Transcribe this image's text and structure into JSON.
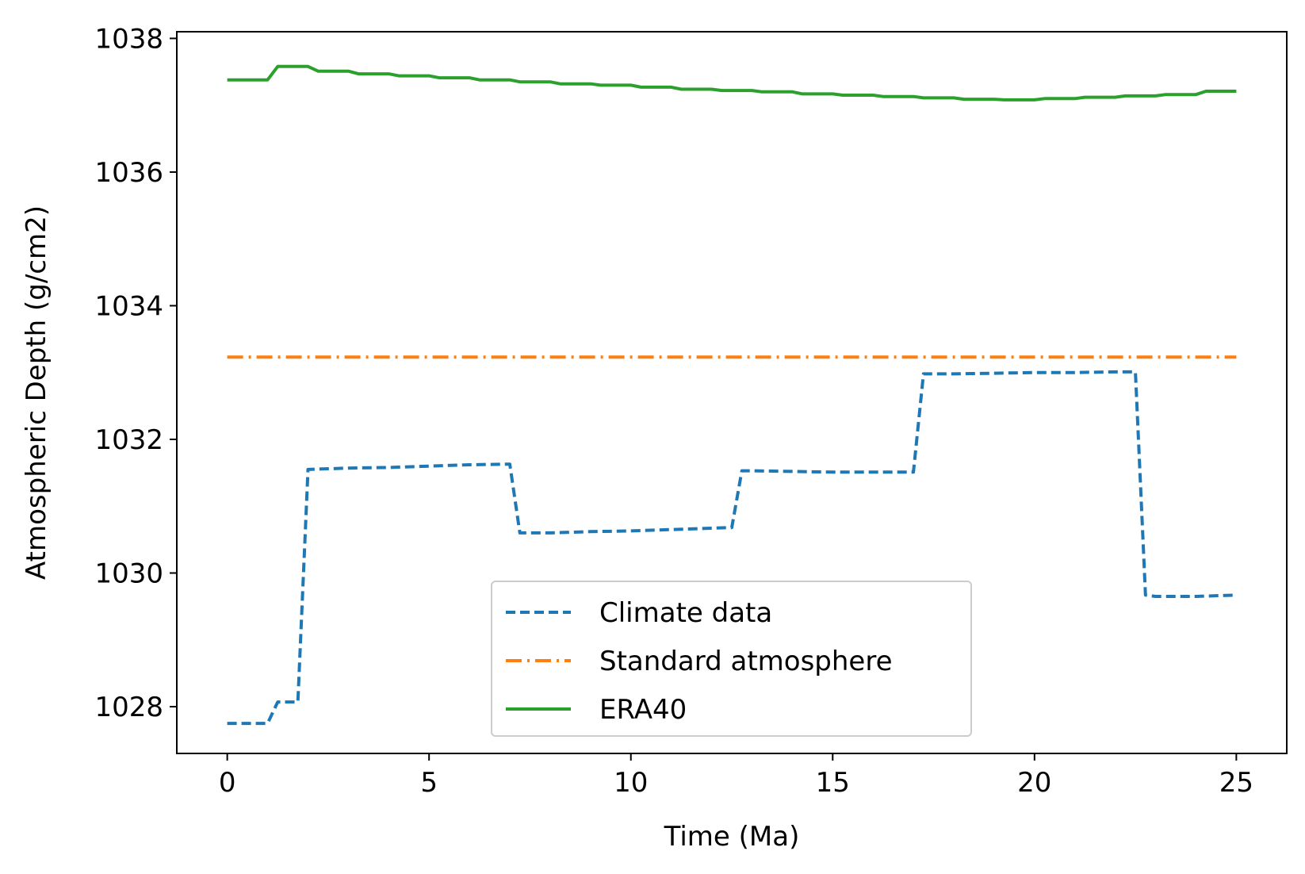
{
  "chart_data": {
    "type": "line",
    "title": "",
    "xlabel": "Time (Ma)",
    "ylabel": "Atmospheric Depth (g/cm2)",
    "xlim": [
      -1.25,
      26.25
    ],
    "ylim": [
      1027.3,
      1038.1
    ],
    "xticks": [
      0,
      5,
      10,
      15,
      20,
      25
    ],
    "yticks": [
      1028,
      1030,
      1032,
      1034,
      1036,
      1038
    ],
    "grid": false,
    "legend_position": "lower center",
    "series": [
      {
        "name": "Climate data",
        "color": "#1f77b4",
        "linestyle": "dashed",
        "x": [
          0,
          1,
          1.25,
          1.75,
          2,
          3,
          4,
          5,
          6,
          7,
          7.25,
          8,
          9,
          10,
          11,
          12,
          12.5,
          12.75,
          13,
          14,
          15,
          16,
          17,
          17.25,
          18,
          19,
          20,
          21,
          22,
          22.5,
          22.75,
          23,
          24,
          25
        ],
        "y": [
          1027.75,
          1027.75,
          1028.07,
          1028.07,
          1031.55,
          1031.57,
          1031.58,
          1031.6,
          1031.62,
          1031.63,
          1030.6,
          1030.6,
          1030.62,
          1030.63,
          1030.65,
          1030.67,
          1030.68,
          1031.53,
          1031.53,
          1031.52,
          1031.51,
          1031.51,
          1031.51,
          1032.98,
          1032.98,
          1032.99,
          1033.0,
          1033.0,
          1033.01,
          1033.01,
          1029.67,
          1029.65,
          1029.65,
          1029.67
        ]
      },
      {
        "name": "Standard atmosphere",
        "color": "#ff7f0e",
        "linestyle": "dashdot",
        "x": [
          0,
          25
        ],
        "y": [
          1033.23,
          1033.23
        ]
      },
      {
        "name": "ERA40",
        "color": "#2ca02c",
        "linestyle": "solid",
        "x": [
          0,
          1,
          1.25,
          2,
          2.25,
          3,
          3.25,
          4,
          4.25,
          5,
          5.25,
          6,
          6.25,
          7,
          7.25,
          8,
          8.25,
          9,
          9.25,
          10,
          10.25,
          11,
          11.25,
          12,
          12.25,
          13,
          13.25,
          14,
          14.25,
          15,
          15.25,
          16,
          16.25,
          17,
          17.25,
          18,
          18.25,
          19,
          19.25,
          20,
          20.25,
          21,
          21.25,
          22,
          22.25,
          23,
          23.25,
          24,
          24.25,
          25
        ],
        "y": [
          1037.38,
          1037.38,
          1037.58,
          1037.58,
          1037.51,
          1037.51,
          1037.47,
          1037.47,
          1037.44,
          1037.44,
          1037.41,
          1037.41,
          1037.38,
          1037.38,
          1037.35,
          1037.35,
          1037.32,
          1037.32,
          1037.3,
          1037.3,
          1037.27,
          1037.27,
          1037.24,
          1037.24,
          1037.22,
          1037.22,
          1037.2,
          1037.2,
          1037.17,
          1037.17,
          1037.15,
          1037.15,
          1037.13,
          1037.13,
          1037.11,
          1037.11,
          1037.09,
          1037.09,
          1037.08,
          1037.08,
          1037.1,
          1037.1,
          1037.12,
          1037.12,
          1037.14,
          1037.14,
          1037.16,
          1037.16,
          1037.21,
          1037.21
        ]
      }
    ]
  }
}
